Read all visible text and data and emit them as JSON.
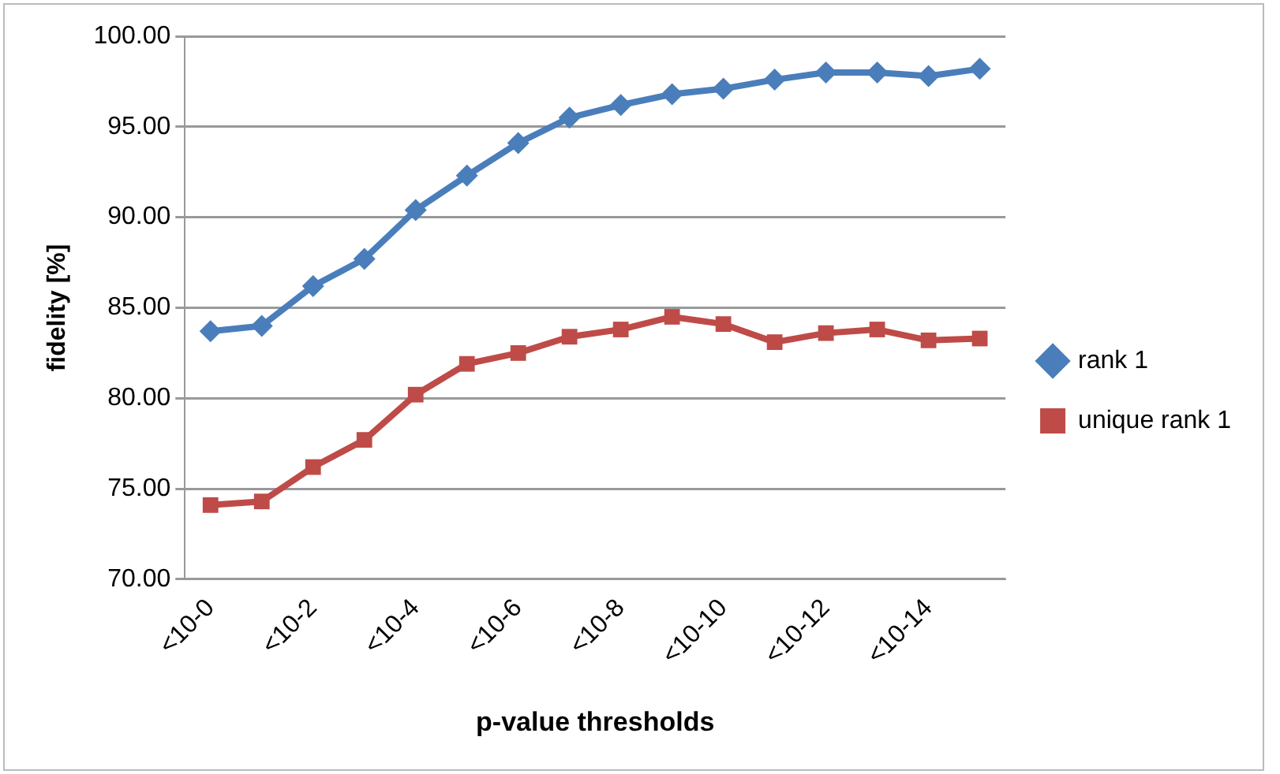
{
  "chart_data": {
    "type": "line",
    "xlabel": "p-value thresholds",
    "ylabel": "fidelity [%]",
    "categories": [
      "<10-0",
      null,
      "<10-2",
      null,
      "<10-4",
      null,
      "<10-6",
      null,
      "<10-8",
      null,
      "<10-10",
      null,
      "<10-12",
      null,
      "<10-14",
      null
    ],
    "series": [
      {
        "name": "rank 1",
        "color": "#4a7ebb",
        "marker": "diamond",
        "values": [
          83.7,
          84.0,
          86.2,
          87.7,
          90.4,
          92.3,
          94.1,
          95.5,
          96.2,
          96.8,
          97.1,
          97.6,
          98.0,
          98.0,
          97.8,
          98.2
        ]
      },
      {
        "name": "unique rank 1",
        "color": "#be4b48",
        "marker": "square",
        "values": [
          74.1,
          74.3,
          76.2,
          77.7,
          80.2,
          81.9,
          82.5,
          83.4,
          83.8,
          84.5,
          84.1,
          83.1,
          83.6,
          83.8,
          83.2,
          83.3
        ]
      }
    ],
    "ylim": [
      70,
      100
    ],
    "yticks": [
      {
        "value": 70,
        "label": "70.00"
      },
      {
        "value": 75,
        "label": "75.00"
      },
      {
        "value": 80,
        "label": "80.00"
      },
      {
        "value": 85,
        "label": "85.00"
      },
      {
        "value": 90,
        "label": "90.00"
      },
      {
        "value": 95,
        "label": "95.00"
      },
      {
        "value": 100,
        "label": "100.00"
      }
    ],
    "grid": "y",
    "legend": "right",
    "line_style": "solid"
  }
}
